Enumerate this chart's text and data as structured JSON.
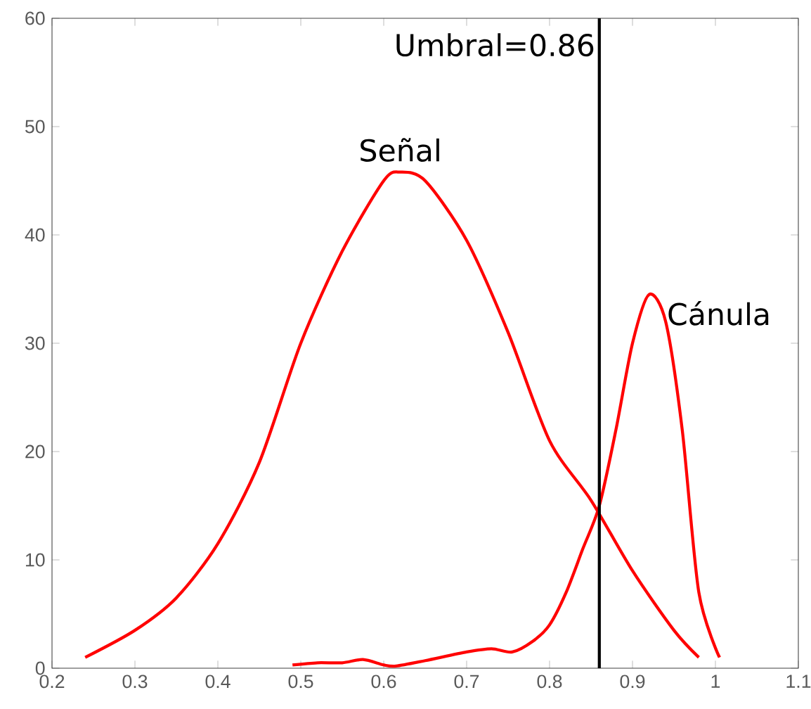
{
  "chart_data": {
    "type": "line",
    "series": [
      {
        "name": "Señal",
        "color": "#ff0000",
        "x": [
          0.24,
          0.3,
          0.35,
          0.4,
          0.45,
          0.5,
          0.55,
          0.6,
          0.62,
          0.65,
          0.7,
          0.75,
          0.8,
          0.85,
          0.9,
          0.95,
          0.98
        ],
        "values": [
          1,
          3.5,
          6.5,
          11.5,
          19,
          30,
          38.5,
          45,
          45.8,
          45,
          39.5,
          31,
          21,
          15.5,
          9,
          3.5,
          1
        ]
      },
      {
        "name": "Cánula",
        "color": "#ff0000",
        "x": [
          0.49,
          0.52,
          0.55,
          0.575,
          0.6,
          0.615,
          0.65,
          0.7,
          0.73,
          0.755,
          0.78,
          0.8,
          0.82,
          0.84,
          0.86,
          0.88,
          0.9,
          0.92,
          0.94,
          0.96,
          0.98,
          1.005
        ],
        "values": [
          0.3,
          0.5,
          0.5,
          0.8,
          0.3,
          0.2,
          0.7,
          1.5,
          1.8,
          1.5,
          2.5,
          4,
          7,
          11,
          15,
          22,
          30,
          34.5,
          32,
          22,
          7,
          1
        ]
      }
    ],
    "ref_lines": [
      {
        "axis": "x",
        "value": 0.86,
        "label": "Umbral=0.86",
        "color": "#000000"
      }
    ],
    "xlim": [
      0.2,
      1.1
    ],
    "ylim": [
      0,
      60
    ],
    "xticks": [
      0.2,
      0.3,
      0.4,
      0.5,
      0.6,
      0.7,
      0.8,
      0.9,
      {
        "value": 1,
        "label": "1"
      },
      1.1
    ],
    "yticks": [
      0,
      10,
      20,
      30,
      40,
      50,
      60
    ],
    "grid": false,
    "marker": "none",
    "line_style": "solid"
  }
}
